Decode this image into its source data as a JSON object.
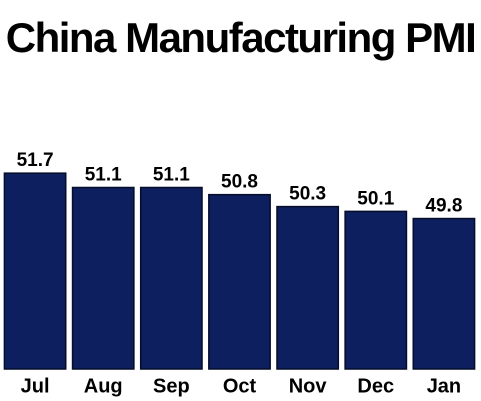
{
  "chart_data": {
    "type": "bar",
    "title": "China Manufacturing PMI",
    "categories": [
      "Jul",
      "Aug",
      "Sep",
      "Oct",
      "Nov",
      "Dec",
      "Jan"
    ],
    "values": [
      51.7,
      51.1,
      51.1,
      50.8,
      50.3,
      50.1,
      49.8
    ],
    "color": "#0d1f5e",
    "ylim": [
      43.5,
      52
    ]
  }
}
